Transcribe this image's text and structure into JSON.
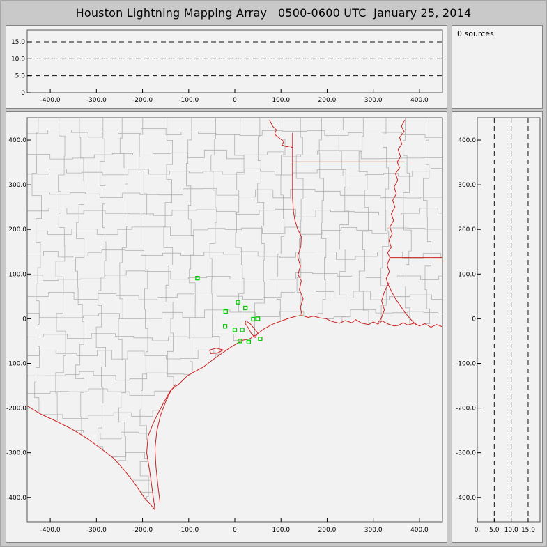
{
  "window": {
    "title": "Houston Lightning Mapping Array   0500-0600 UTC  January 25, 2014"
  },
  "sources_panel": {
    "label": "0 sources"
  },
  "colors": {
    "station_marker": "#00cc00",
    "political_boundary": "#cc2020",
    "county_line": "#b0b0b0",
    "dashed_gridline": "#111111",
    "plot_frame": "#555555",
    "axis_text": "#000000"
  },
  "chart_data": [
    {
      "id": "alt_vs_ew",
      "type": "scatter",
      "xlim": [
        -450,
        450
      ],
      "ylim": [
        0,
        18.5
      ],
      "x_ticks": [
        -400,
        -300,
        -200,
        -100,
        0,
        100,
        200,
        300,
        400
      ],
      "x_tick_labels": [
        "-400.0",
        "-300.0",
        "-200.0",
        "-100.0",
        "0",
        "100.0",
        "200.0",
        "300.0",
        "400.0"
      ],
      "y_ticks": [
        0,
        5,
        10,
        15
      ],
      "y_tick_labels": [
        "0",
        "5.0",
        "10.0",
        "15.0"
      ],
      "dashed_y_gridlines": [
        5,
        10,
        15
      ],
      "points": []
    },
    {
      "id": "plan_view_map",
      "type": "scatter",
      "xlim": [
        -450,
        450
      ],
      "ylim": [
        -455,
        450
      ],
      "x_ticks": [
        -400,
        -300,
        -200,
        -100,
        0,
        100,
        200,
        300,
        400
      ],
      "x_tick_labels": [
        "-400.0",
        "-300.0",
        "-200.0",
        "-100.0",
        "0",
        "100.0",
        "200.0",
        "300.0",
        "400.0"
      ],
      "y_ticks": [
        400,
        300,
        200,
        100,
        0,
        -100,
        -200,
        -300,
        -400
      ],
      "y_tick_labels": [
        "400.0",
        "300.0",
        "200.0",
        "100.0",
        "0",
        "-100.0",
        "-200.0",
        "-300.0",
        "-400.0"
      ],
      "points": [],
      "stations_xy_km": [
        [
          -81,
          91
        ],
        [
          7,
          37
        ],
        [
          23,
          24
        ],
        [
          -20,
          16
        ],
        [
          -21,
          -17
        ],
        [
          0,
          -25
        ],
        [
          16,
          -25
        ],
        [
          40,
          -1
        ],
        [
          50,
          0
        ],
        [
          11,
          -50
        ],
        [
          30,
          -52
        ],
        [
          55,
          -45
        ]
      ],
      "county_mesh": {
        "spacing_km": 44,
        "jitter_km": 22,
        "seed": 12345
      },
      "map_geometry": {
        "boundaries_km": {
          "coast": [
            [
              -173,
              -428
            ],
            [
              -178,
              -390
            ],
            [
              -184,
              -345
            ],
            [
              -191,
              -300
            ],
            [
              -188,
              -263
            ],
            [
              -176,
              -232
            ],
            [
              -164,
              -207
            ],
            [
              -152,
              -184
            ],
            [
              -139,
              -160
            ],
            [
              -121,
              -146
            ],
            [
              -103,
              -128
            ],
            [
              -86,
              -118
            ],
            [
              -68,
              -108
            ],
            [
              -48,
              -92
            ],
            [
              -26,
              -76
            ],
            [
              -6,
              -62
            ],
            [
              17,
              -48
            ],
            [
              32,
              -45
            ],
            [
              45,
              -37
            ],
            [
              61,
              -24
            ],
            [
              80,
              -13
            ],
            [
              103,
              -4
            ],
            [
              120,
              2
            ],
            [
              134,
              6
            ],
            [
              146,
              7
            ],
            [
              159,
              3
            ],
            [
              171,
              6
            ],
            [
              184,
              2
            ],
            [
              198,
              0
            ],
            [
              210,
              -6
            ],
            [
              227,
              -10
            ],
            [
              239,
              -4
            ],
            [
              254,
              -9
            ],
            [
              262,
              -2
            ],
            [
              275,
              -10
            ],
            [
              290,
              -13
            ],
            [
              300,
              -7
            ],
            [
              310,
              -12
            ],
            [
              319,
              -5
            ],
            [
              333,
              -12
            ],
            [
              345,
              -16
            ],
            [
              354,
              -15
            ],
            [
              365,
              -9
            ],
            [
              375,
              -14
            ],
            [
              389,
              -10
            ],
            [
              400,
              -16
            ],
            [
              412,
              -11
            ],
            [
              425,
              -19
            ],
            [
              437,
              -13
            ],
            [
              450,
              -18
            ]
          ],
          "rio_grande": [
            [
              -450,
              -195
            ],
            [
              -420,
              -214
            ],
            [
              -390,
              -228
            ],
            [
              -355,
              -246
            ],
            [
              -320,
              -268
            ],
            [
              -290,
              -291
            ],
            [
              -262,
              -313
            ],
            [
              -238,
              -341
            ],
            [
              -215,
              -372
            ],
            [
              -196,
              -401
            ],
            [
              -181,
              -418
            ],
            [
              -173,
              -428
            ]
          ],
          "barrier_island": [
            [
              -128,
              -147
            ],
            [
              -139,
              -162
            ],
            [
              -150,
              -186
            ],
            [
              -161,
              -216
            ],
            [
              -169,
              -251
            ],
            [
              -173,
              -291
            ],
            [
              -171,
              -331
            ],
            [
              -167,
              -371
            ],
            [
              -162,
              -412
            ]
          ],
          "red_river": [
            [
              75,
              445
            ],
            [
              82,
              431
            ],
            [
              90,
              423
            ],
            [
              86,
              413
            ],
            [
              97,
              404
            ],
            [
              106,
              397
            ],
            [
              102,
              389
            ],
            [
              112,
              385
            ],
            [
              120,
              387
            ],
            [
              125,
              382
            ]
          ],
          "ok_ar_border": [
            [
              125,
              416
            ],
            [
              125,
              351
            ]
          ],
          "ar_la_border": [
            [
              125,
              351
            ],
            [
              368,
              351
            ]
          ],
          "mississippi_river": [
            [
              368,
              445
            ],
            [
              361,
              431
            ],
            [
              367,
              419
            ],
            [
              357,
              406
            ],
            [
              362,
              391
            ],
            [
              354,
              379
            ],
            [
              359,
              363
            ],
            [
              352,
              351
            ],
            [
              357,
              338
            ],
            [
              348,
              325
            ],
            [
              353,
              310
            ],
            [
              345,
              295
            ],
            [
              350,
              280
            ],
            [
              342,
              265
            ],
            [
              347,
              250
            ],
            [
              339,
              235
            ],
            [
              344,
              220
            ],
            [
              336,
              205
            ],
            [
              341,
              190
            ],
            [
              334,
              175
            ],
            [
              339,
              160
            ],
            [
              331,
              148
            ],
            [
              336,
              137
            ],
            [
              330,
              120
            ],
            [
              335,
              105
            ],
            [
              328,
              90
            ],
            [
              333,
              75
            ],
            [
              340,
              60
            ],
            [
              348,
              45
            ],
            [
              358,
              30
            ],
            [
              368,
              15
            ],
            [
              380,
              0
            ],
            [
              392,
              -13
            ]
          ],
          "la_ms_border": [
            [
              336,
              137
            ],
            [
              450,
              137
            ]
          ],
          "tx_la_border": [
            [
              146,
              7
            ],
            [
              142,
              25
            ],
            [
              148,
              45
            ],
            [
              140,
              65
            ],
            [
              144,
              85
            ],
            [
              137,
              99
            ],
            [
              142,
              118
            ],
            [
              136,
              140
            ],
            [
              143,
              161
            ],
            [
              144,
              184
            ],
            [
              136,
              201
            ],
            [
              130,
              221
            ],
            [
              127,
              241
            ],
            [
              125,
              270
            ],
            [
              125,
              297
            ],
            [
              125,
              325
            ],
            [
              125,
              351
            ]
          ],
          "galveston_bay": [
            [
              24,
              -4
            ],
            [
              34,
              -12
            ],
            [
              42,
              -22
            ],
            [
              50,
              -32
            ],
            [
              44,
              -42
            ],
            [
              35,
              -32
            ],
            [
              29,
              -20
            ],
            [
              22,
              -10
            ],
            [
              24,
              -4
            ]
          ],
          "matagorda_bay": [
            [
              -55,
              -70
            ],
            [
              -40,
              -66
            ],
            [
              -25,
              -70
            ],
            [
              -38,
              -77
            ],
            [
              -52,
              -78
            ],
            [
              -55,
              -70
            ]
          ],
          "atchafalaya_river": [
            [
              334,
              80
            ],
            [
              324,
              60
            ],
            [
              318,
              40
            ],
            [
              324,
              20
            ],
            [
              317,
              0
            ],
            [
              311,
              -8
            ]
          ]
        }
      }
    },
    {
      "id": "alt_vs_ns",
      "type": "scatter",
      "xlim": [
        0,
        18.5
      ],
      "ylim": [
        -455,
        450
      ],
      "x_ticks": [
        0,
        5,
        10,
        15
      ],
      "x_tick_labels": [
        "0.",
        "5.0",
        "10.0",
        "15.0"
      ],
      "y_ticks": [
        400,
        300,
        200,
        100,
        0,
        -100,
        -200,
        -300,
        -400
      ],
      "y_tick_labels": [
        "400.0",
        "300.0",
        "200.0",
        "100.0",
        "0",
        "-100.0",
        "-200.0",
        "-300.0",
        "-400.0"
      ],
      "dashed_x_gridlines": [
        5,
        10,
        15
      ],
      "points": []
    }
  ]
}
